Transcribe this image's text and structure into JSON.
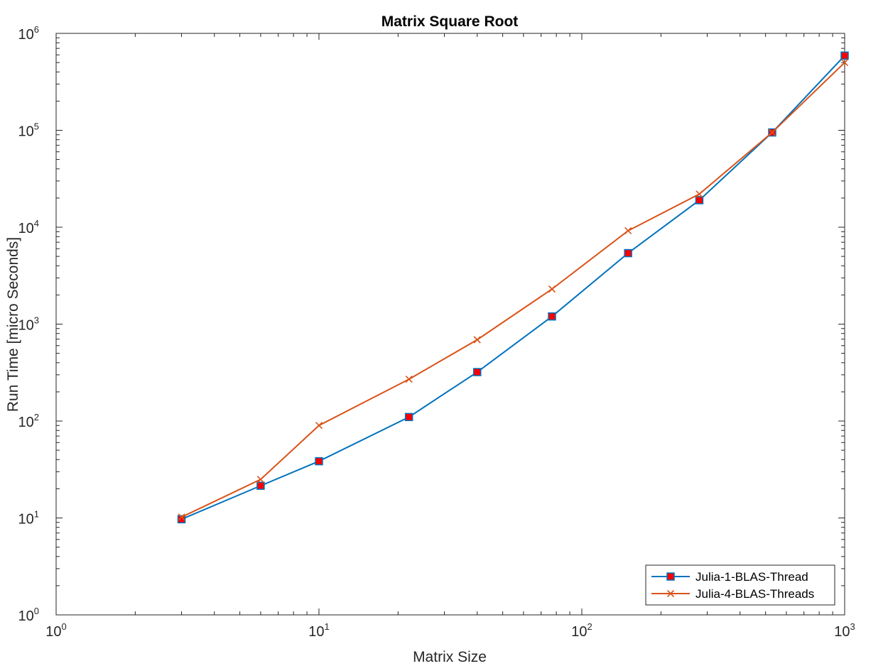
{
  "chart_data": {
    "type": "line",
    "title": "Matrix Square Root",
    "xlabel": "Matrix Size",
    "ylabel": "Run Time  [micro Seconds]",
    "xscale": "log",
    "yscale": "log",
    "xlim": [
      1,
      1000
    ],
    "ylim": [
      1,
      1000000
    ],
    "x_ticks": [
      1,
      10,
      100,
      1000
    ],
    "x_tick_labels": [
      {
        "base": "10",
        "exp": "0"
      },
      {
        "base": "10",
        "exp": "1"
      },
      {
        "base": "10",
        "exp": "2"
      },
      {
        "base": "10",
        "exp": "3"
      }
    ],
    "y_ticks": [
      1,
      10,
      100,
      1000,
      10000,
      100000,
      1000000
    ],
    "y_tick_labels": [
      {
        "base": "10",
        "exp": "0"
      },
      {
        "base": "10",
        "exp": "1"
      },
      {
        "base": "10",
        "exp": "2"
      },
      {
        "base": "10",
        "exp": "3"
      },
      {
        "base": "10",
        "exp": "4"
      },
      {
        "base": "10",
        "exp": "5"
      },
      {
        "base": "10",
        "exp": "6"
      }
    ],
    "grid": false,
    "legend_position": "bottom-right",
    "x": [
      3,
      6,
      10,
      22,
      40,
      77,
      150,
      280,
      530,
      1000
    ],
    "series": [
      {
        "name": "Julia-1-BLAS-Thread",
        "color": "#0072BD",
        "marker": "square",
        "marker_fill": "#FF0000",
        "values": [
          9.7,
          21.5,
          38.5,
          110,
          320,
          1200,
          5400,
          19000,
          95000,
          590000
        ]
      },
      {
        "name": "Julia-4-BLAS-Threads",
        "color": "#D95319",
        "marker": "x",
        "values": [
          10.2,
          25,
          90,
          270,
          690,
          2300,
          9200,
          22000,
          95000,
          500000
        ]
      }
    ]
  }
}
